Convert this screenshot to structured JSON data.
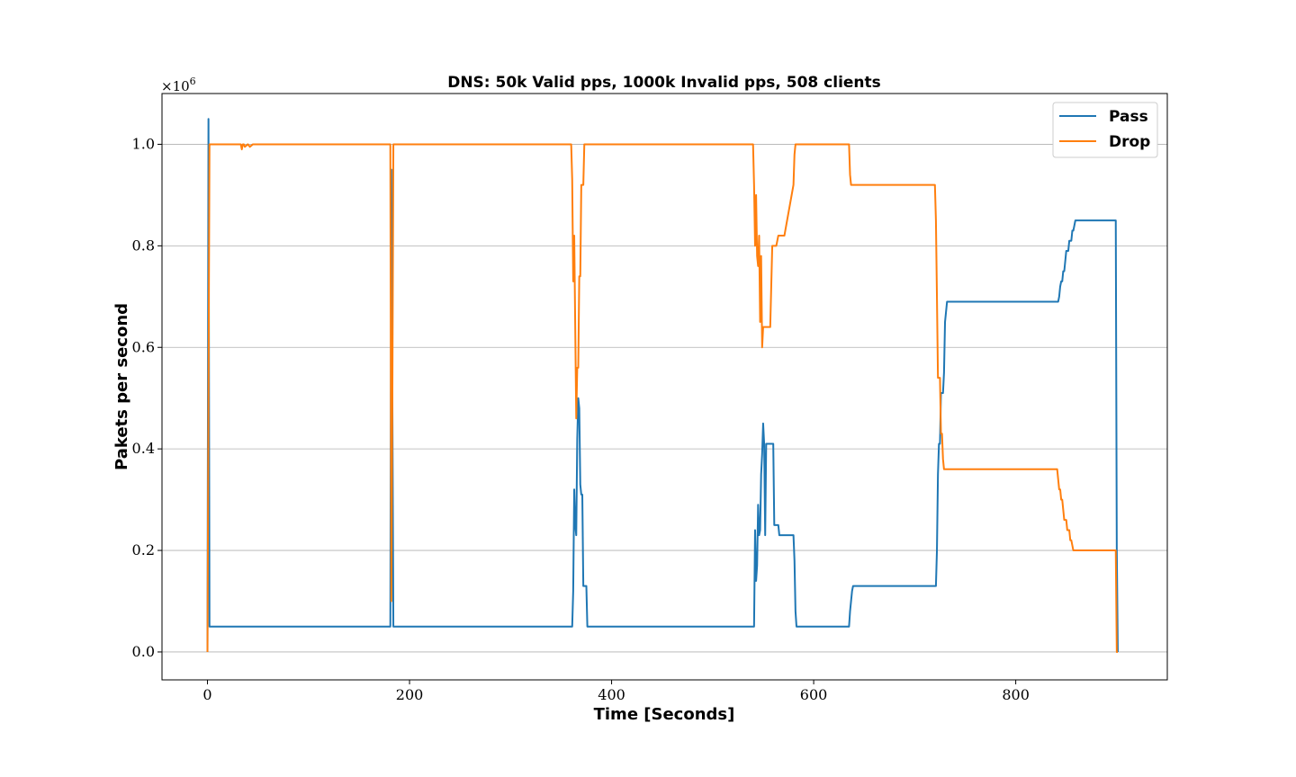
{
  "chart_data": {
    "type": "line",
    "title": "DNS: 50k Valid pps, 1000k Invalid pps, 508 clients",
    "xlabel": "Time [Seconds]",
    "ylabel": "Pakets per second",
    "y_offset_base": "×10",
    "y_offset_exp": "6",
    "xlim": [
      -45,
      950
    ],
    "ylim": [
      -0.055,
      1.1
    ],
    "xticks": [
      0,
      200,
      400,
      600,
      800
    ],
    "xtick_labels": [
      "0",
      "200",
      "400",
      "600",
      "800"
    ],
    "yticks": [
      0.0,
      0.2,
      0.4,
      0.6,
      0.8,
      1.0
    ],
    "ytick_labels": [
      "0.0",
      "0.2",
      "0.4",
      "0.6",
      "0.8",
      "1.0"
    ],
    "grid": "horizontal",
    "legend_position": "top-right",
    "series": [
      {
        "name": "Pass",
        "color": "#1f77b4",
        "x": [
          0,
          1,
          2,
          3,
          180,
          181,
          182,
          183,
          184,
          185,
          186,
          187,
          360,
          361,
          362,
          363,
          364,
          365,
          366,
          367,
          368,
          369,
          370,
          371,
          372,
          373,
          375,
          376,
          378,
          379,
          540,
          541,
          542,
          543,
          544,
          545,
          546,
          547,
          548,
          549,
          550,
          551,
          552,
          553,
          554,
          555,
          556,
          557,
          560,
          561,
          562,
          563,
          565,
          566,
          570,
          571,
          580,
          581,
          582,
          583,
          585,
          586,
          634,
          635,
          636,
          637,
          638,
          639,
          640,
          719,
          720,
          721,
          722,
          723,
          724,
          725,
          726,
          727,
          728,
          729,
          730,
          732,
          840,
          841,
          842,
          843,
          844,
          845,
          846,
          847,
          848,
          849,
          850,
          851,
          852,
          853,
          854,
          855,
          856,
          857,
          858,
          859,
          860,
          862,
          898,
          899,
          900,
          901
        ],
        "y": [
          0,
          1.05,
          0.05,
          0.05,
          0.05,
          0.05,
          0.95,
          0.5,
          0.05,
          0.05,
          0.05,
          0.05,
          0.05,
          0.05,
          0.12,
          0.32,
          0.25,
          0.23,
          0.42,
          0.5,
          0.48,
          0.33,
          0.31,
          0.31,
          0.13,
          0.13,
          0.13,
          0.05,
          0.05,
          0.05,
          0.05,
          0.05,
          0.24,
          0.14,
          0.17,
          0.29,
          0.23,
          0.24,
          0.35,
          0.39,
          0.45,
          0.41,
          0.23,
          0.41,
          0.41,
          0.41,
          0.41,
          0.41,
          0.41,
          0.25,
          0.25,
          0.25,
          0.25,
          0.23,
          0.23,
          0.23,
          0.23,
          0.18,
          0.08,
          0.05,
          0.05,
          0.05,
          0.05,
          0.05,
          0.08,
          0.1,
          0.12,
          0.13,
          0.13,
          0.13,
          0.13,
          0.13,
          0.2,
          0.35,
          0.41,
          0.41,
          0.51,
          0.51,
          0.51,
          0.55,
          0.65,
          0.69,
          0.69,
          0.69,
          0.69,
          0.7,
          0.72,
          0.73,
          0.73,
          0.75,
          0.75,
          0.77,
          0.79,
          0.79,
          0.79,
          0.81,
          0.81,
          0.81,
          0.83,
          0.83,
          0.84,
          0.85,
          0.85,
          0.85,
          0.85,
          0.85,
          0.2,
          0.0
        ]
      },
      {
        "name": "Drop",
        "color": "#ff7f0e",
        "x": [
          0,
          1,
          2,
          3,
          10,
          17,
          18,
          19,
          22,
          23,
          26,
          27,
          29,
          30,
          33,
          34,
          35,
          36,
          37,
          40,
          42,
          45,
          180,
          181,
          182,
          183,
          184,
          185,
          186,
          187,
          295,
          296,
          297,
          360,
          361,
          362,
          363,
          364,
          365,
          366,
          367,
          368,
          369,
          370,
          371,
          372,
          373,
          375,
          376,
          378,
          379,
          540,
          541,
          542,
          543,
          544,
          545,
          546,
          547,
          548,
          549,
          550,
          551,
          552,
          553,
          554,
          555,
          556,
          557,
          559,
          560,
          561,
          562,
          563,
          565,
          566,
          570,
          571,
          580,
          581,
          582,
          583,
          585,
          586,
          634,
          635,
          636,
          637,
          638,
          639,
          640,
          719,
          720,
          721,
          722,
          723,
          724,
          725,
          726,
          727,
          728,
          729,
          730,
          732,
          840,
          841,
          842,
          843,
          844,
          845,
          846,
          847,
          848,
          849,
          850,
          851,
          852,
          853,
          854,
          855,
          856,
          857,
          858,
          859,
          860,
          862,
          898,
          899,
          900,
          901
        ],
        "y": [
          0,
          0.5,
          1.0,
          1.0,
          1.0,
          1.0,
          1.0,
          1.0,
          1.0,
          1.0,
          1.0,
          1.0,
          1.0,
          1.0,
          1.0,
          0.99,
          1.0,
          1.0,
          0.995,
          1.0,
          0.995,
          1.0,
          1.0,
          1.0,
          0.1,
          0.5,
          1.0,
          1.0,
          1.0,
          1.0,
          1.0,
          1.0,
          1.0,
          1.0,
          0.93,
          0.73,
          0.82,
          0.64,
          0.46,
          0.56,
          0.56,
          0.74,
          0.74,
          0.92,
          0.92,
          0.92,
          1.0,
          1.0,
          1.0,
          1.0,
          1.0,
          1.0,
          0.92,
          0.8,
          0.9,
          0.78,
          0.76,
          0.82,
          0.65,
          0.78,
          0.6,
          0.64,
          0.64,
          0.64,
          0.64,
          0.64,
          0.64,
          0.64,
          0.64,
          0.8,
          0.8,
          0.8,
          0.8,
          0.8,
          0.82,
          0.82,
          0.82,
          0.82,
          0.92,
          0.98,
          1.0,
          1.0,
          1.0,
          1.0,
          1.0,
          1.0,
          0.94,
          0.92,
          0.92,
          0.92,
          0.92,
          0.92,
          0.92,
          0.85,
          0.7,
          0.54,
          0.54,
          0.54,
          0.43,
          0.43,
          0.38,
          0.36,
          0.36,
          0.36,
          0.36,
          0.36,
          0.34,
          0.32,
          0.32,
          0.3,
          0.3,
          0.28,
          0.26,
          0.26,
          0.26,
          0.24,
          0.24,
          0.24,
          0.22,
          0.22,
          0.21,
          0.2,
          0.2,
          0.2,
          0.2,
          0.2,
          0.2,
          0.2,
          0.0,
          0.0
        ]
      }
    ]
  }
}
